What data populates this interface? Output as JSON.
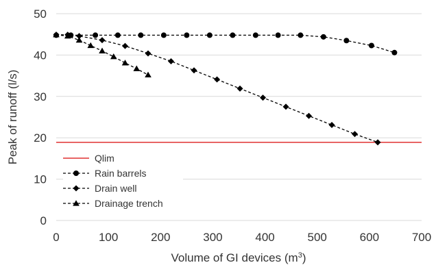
{
  "chart_data": {
    "type": "line",
    "xlabel": "Volume of GI devices (m",
    "xlabel_sup": "3",
    "xlabel_close": ")",
    "ylabel": "Peak of runoff (l/s)",
    "xlim": [
      0,
      700
    ],
    "ylim": [
      0,
      50
    ],
    "x_ticks": [
      0,
      100,
      200,
      300,
      400,
      500,
      600,
      700
    ],
    "y_ticks": [
      0,
      10,
      20,
      30,
      40,
      50
    ],
    "grid": "horizontal",
    "legend_position": "bottom-left",
    "reference_line": {
      "name": "Qlim",
      "y": 18.9,
      "color": "#e03030"
    },
    "series": [
      {
        "name": "Rain barrels",
        "marker": "circle",
        "style": "dashed",
        "color": "#000000",
        "x": [
          0,
          28,
          75,
          118,
          162,
          206,
          250,
          294,
          338,
          382,
          425,
          468,
          512,
          556,
          604,
          648
        ],
        "y": [
          44.8,
          44.8,
          44.8,
          44.8,
          44.8,
          44.8,
          44.8,
          44.8,
          44.8,
          44.8,
          44.8,
          44.8,
          44.4,
          43.5,
          42.3,
          40.6
        ]
      },
      {
        "name": "Drain well",
        "marker": "diamond",
        "style": "dashed",
        "color": "#000000",
        "x": [
          0,
          22,
          44,
          88,
          132,
          176,
          220,
          264,
          308,
          352,
          396,
          440,
          484,
          528,
          572,
          616
        ],
        "y": [
          44.9,
          44.9,
          44.6,
          43.6,
          42.2,
          40.4,
          38.5,
          36.3,
          34.1,
          31.9,
          29.7,
          27.5,
          25.3,
          23.1,
          20.9,
          18.9
        ]
      },
      {
        "name": "Drainage trench",
        "marker": "triangle",
        "style": "dashed",
        "color": "#000000",
        "x": [
          0,
          22,
          44,
          66,
          88,
          110,
          132,
          154,
          176
        ],
        "y": [
          44.9,
          44.6,
          43.6,
          42.3,
          41.0,
          39.6,
          38.1,
          36.7,
          35.2
        ]
      }
    ]
  }
}
